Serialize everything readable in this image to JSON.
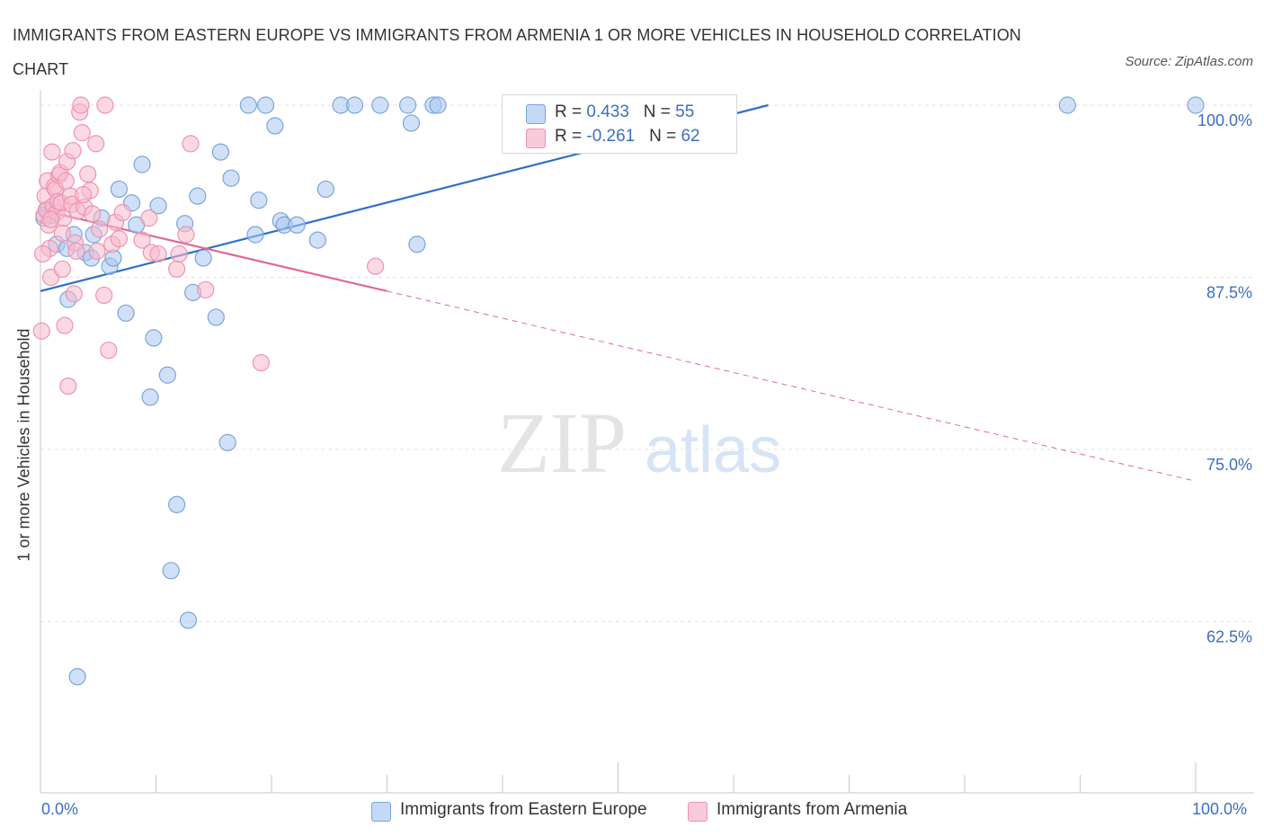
{
  "title": "IMMIGRANTS FROM EASTERN EUROPE VS IMMIGRANTS FROM ARMENIA 1 OR MORE VEHICLES IN HOUSEHOLD CORRELATION CHART",
  "source": "Source: ZipAtlas.com",
  "watermark": {
    "zip": "ZIP",
    "atlas": "atlas"
  },
  "colors": {
    "blue_fill": "#aac8f0",
    "blue_stroke": "#7ba4dc",
    "blue_line": "#2f6fc6",
    "pink_fill": "#f7b9cc",
    "pink_stroke": "#ee93b0",
    "pink_line": "#e06a93",
    "grid": "#e3e3e3",
    "axis_label": "#3a6fc4"
  },
  "legend_top": {
    "rows": [
      {
        "r_label": "R = ",
        "r_value": "0.433",
        "n_label": "N = ",
        "n_value": "55"
      },
      {
        "r_label": "R = ",
        "r_value": "-0.261",
        "n_label": "N = ",
        "n_value": "62"
      }
    ]
  },
  "chart_data": {
    "type": "scatter",
    "ylabel": "1 or more Vehicles in Household",
    "x_tick_labels": [
      "0.0%",
      "100.0%"
    ],
    "y_tick_labels": [
      "100.0%",
      "87.5%",
      "75.0%",
      "62.5%"
    ],
    "y_ticks": [
      100.0,
      87.5,
      75.0,
      62.5
    ],
    "xlim": [
      0,
      100
    ],
    "ylim": [
      50.3,
      101.1
    ],
    "grid": true,
    "legend_placement": "bottom",
    "series": [
      {
        "name": "Immigrants from Eastern Europe",
        "color": "blue",
        "trend": {
          "x": [
            0,
            63
          ],
          "y": [
            86.5,
            100.0
          ],
          "dashed_to": null
        },
        "points": [
          [
            1.4,
            89.9
          ],
          [
            2.3,
            89.6
          ],
          [
            2.4,
            85.9
          ],
          [
            2.9,
            90.6
          ],
          [
            3.2,
            58.5
          ],
          [
            3.9,
            89.3
          ],
          [
            4.4,
            88.9
          ],
          [
            4.6,
            90.6
          ],
          [
            5.3,
            91.8
          ],
          [
            6.0,
            88.3
          ],
          [
            6.3,
            88.9
          ],
          [
            6.8,
            93.9
          ],
          [
            7.4,
            84.9
          ],
          [
            7.9,
            92.9
          ],
          [
            8.3,
            91.3
          ],
          [
            8.8,
            95.7
          ],
          [
            9.5,
            78.8
          ],
          [
            9.8,
            83.1
          ],
          [
            10.2,
            92.7
          ],
          [
            11.0,
            80.4
          ],
          [
            11.3,
            66.2
          ],
          [
            11.8,
            71.0
          ],
          [
            12.5,
            91.4
          ],
          [
            12.8,
            62.6
          ],
          [
            13.2,
            86.4
          ],
          [
            13.6,
            93.4
          ],
          [
            14.1,
            88.9
          ],
          [
            15.2,
            84.6
          ],
          [
            15.6,
            96.6
          ],
          [
            16.2,
            75.5
          ],
          [
            16.5,
            94.7
          ],
          [
            18.0,
            100.0
          ],
          [
            18.6,
            90.6
          ],
          [
            18.9,
            93.1
          ],
          [
            19.5,
            100.0
          ],
          [
            20.3,
            98.5
          ],
          [
            20.8,
            91.6
          ],
          [
            21.1,
            91.3
          ],
          [
            22.2,
            91.3
          ],
          [
            24.0,
            90.2
          ],
          [
            24.7,
            93.9
          ],
          [
            26.0,
            100.0
          ],
          [
            27.2,
            100.0
          ],
          [
            29.4,
            100.0
          ],
          [
            31.8,
            100.0
          ],
          [
            32.1,
            98.7
          ],
          [
            32.6,
            89.9
          ],
          [
            34.0,
            100.0
          ],
          [
            34.4,
            100.0
          ],
          [
            47.0,
            100.0
          ],
          [
            88.9,
            100.0
          ],
          [
            100.0,
            100.0
          ],
          [
            0.6,
            92.4
          ],
          [
            1.0,
            92.0
          ],
          [
            0.3,
            91.8
          ]
        ]
      },
      {
        "name": "Immigrants from Armenia",
        "color": "pink",
        "trend": {
          "x": [
            0,
            30
          ],
          "y": [
            92.4,
            86.5
          ],
          "dashed_to": [
            100,
            72.7
          ]
        },
        "points": [
          [
            0.1,
            83.6
          ],
          [
            0.3,
            92.0
          ],
          [
            0.4,
            93.4
          ],
          [
            0.5,
            92.4
          ],
          [
            0.6,
            94.5
          ],
          [
            0.7,
            91.3
          ],
          [
            0.8,
            89.6
          ],
          [
            0.9,
            87.5
          ],
          [
            1.0,
            96.6
          ],
          [
            1.1,
            92.7
          ],
          [
            1.2,
            94.1
          ],
          [
            1.3,
            93.9
          ],
          [
            1.4,
            92.2
          ],
          [
            1.5,
            93.0
          ],
          [
            1.6,
            94.9
          ],
          [
            1.7,
            95.1
          ],
          [
            1.8,
            92.9
          ],
          [
            1.9,
            88.1
          ],
          [
            2.0,
            91.8
          ],
          [
            2.1,
            84.0
          ],
          [
            2.2,
            94.5
          ],
          [
            2.3,
            95.9
          ],
          [
            2.4,
            79.6
          ],
          [
            2.6,
            93.4
          ],
          [
            2.7,
            92.8
          ],
          [
            2.8,
            96.7
          ],
          [
            3.0,
            90.0
          ],
          [
            3.1,
            89.4
          ],
          [
            3.2,
            92.3
          ],
          [
            3.4,
            99.5
          ],
          [
            3.5,
            100.0
          ],
          [
            3.6,
            98.0
          ],
          [
            3.8,
            92.6
          ],
          [
            4.1,
            95.0
          ],
          [
            4.3,
            93.8
          ],
          [
            4.5,
            92.1
          ],
          [
            4.8,
            97.2
          ],
          [
            4.9,
            89.4
          ],
          [
            5.1,
            91.0
          ],
          [
            5.5,
            86.2
          ],
          [
            5.6,
            100.0
          ],
          [
            5.9,
            82.2
          ],
          [
            6.2,
            89.9
          ],
          [
            6.5,
            91.5
          ],
          [
            6.8,
            90.3
          ],
          [
            7.1,
            92.2
          ],
          [
            8.8,
            90.2
          ],
          [
            9.4,
            91.8
          ],
          [
            9.6,
            89.3
          ],
          [
            10.2,
            89.2
          ],
          [
            11.8,
            88.1
          ],
          [
            12.0,
            89.2
          ],
          [
            12.6,
            90.6
          ],
          [
            13.0,
            97.2
          ],
          [
            14.3,
            86.6
          ],
          [
            19.1,
            81.3
          ],
          [
            29.0,
            88.3
          ],
          [
            0.2,
            89.2
          ],
          [
            0.9,
            91.7
          ],
          [
            1.9,
            90.7
          ],
          [
            3.7,
            93.5
          ],
          [
            2.9,
            86.3
          ]
        ]
      }
    ]
  }
}
